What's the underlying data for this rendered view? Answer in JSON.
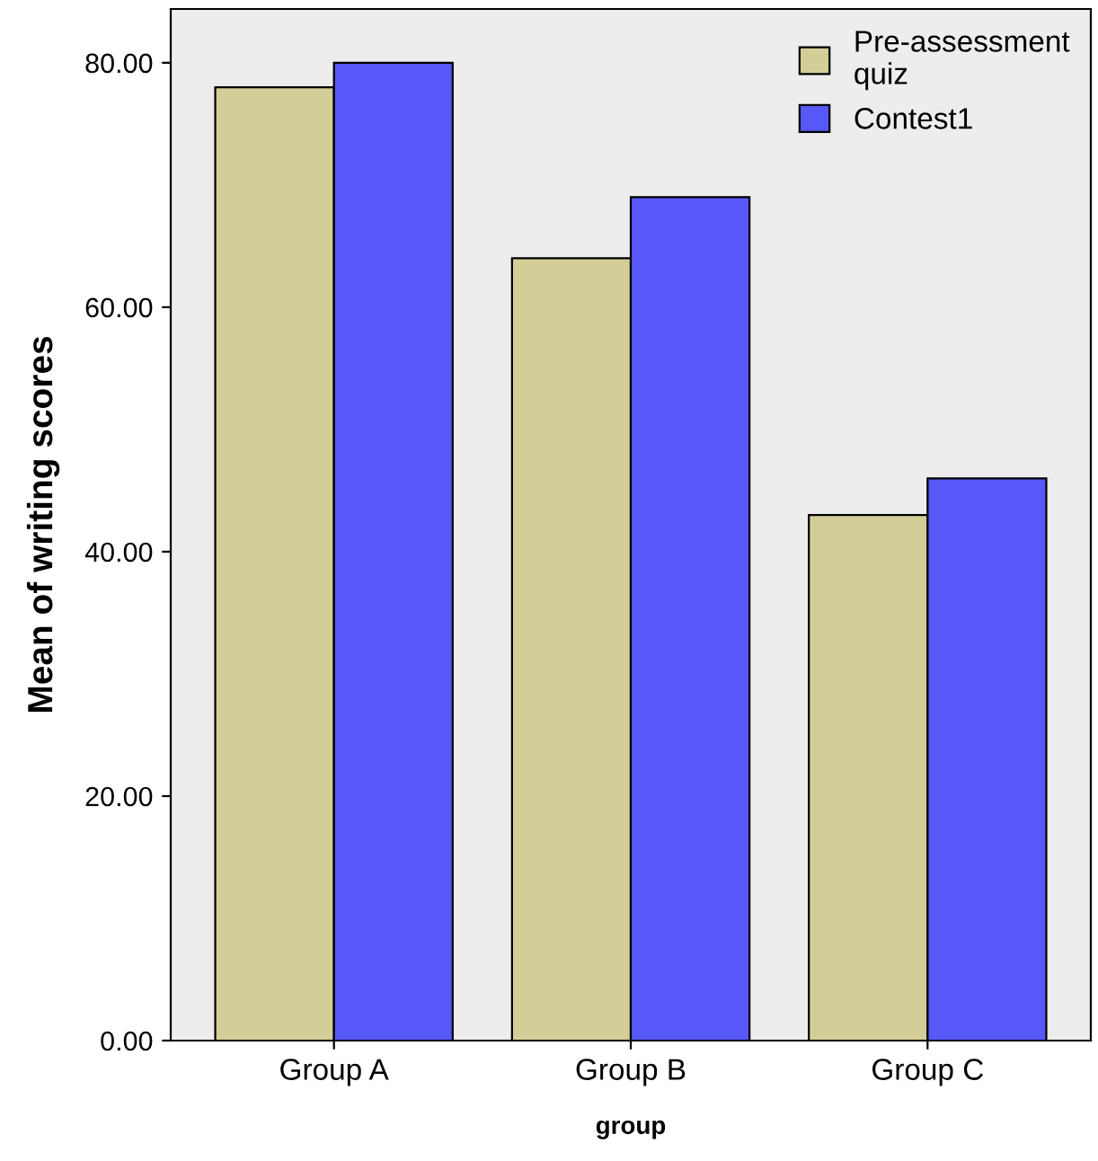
{
  "chart_data": {
    "type": "bar",
    "xlabel": "group",
    "ylabel": "Mean of writing scores",
    "categories": [
      "Group A",
      "Group B",
      "Group C"
    ],
    "series": [
      {
        "name": "Pre-assessment\nquiz",
        "color": "#d3ce98",
        "values": [
          78,
          64,
          43
        ]
      },
      {
        "name": "Contest1",
        "color": "#5858f8",
        "values": [
          80,
          69,
          46
        ]
      }
    ],
    "ylim": [
      0,
      84.4
    ],
    "yticks": [
      {
        "value": 0,
        "label": "0.00"
      },
      {
        "value": 20,
        "label": "20.00"
      },
      {
        "value": 40,
        "label": "40.00"
      },
      {
        "value": 60,
        "label": "60.00"
      },
      {
        "value": 80,
        "label": "80.00"
      }
    ],
    "legend": "top right",
    "grid": false
  }
}
